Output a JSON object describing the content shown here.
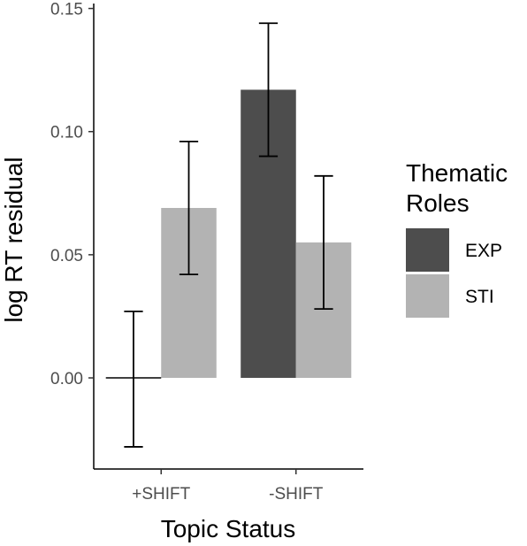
{
  "chart_data": {
    "type": "bar",
    "xlabel": "Topic Status",
    "ylabel": "log RT residual",
    "categories": [
      "+SHIFT",
      "-SHIFT"
    ],
    "ylim": [
      -0.037,
      0.152
    ],
    "yticks": [
      0.0,
      0.05,
      0.1,
      0.15
    ],
    "ytick_labels": [
      "0.00",
      "0.05",
      "0.10",
      "0.15"
    ],
    "grid": false,
    "legend": {
      "title_lines": [
        "Thematic",
        "Roles"
      ],
      "placement": "right"
    },
    "series": [
      {
        "name": "EXP",
        "color": "#4d4d4d",
        "values": [
          0.0,
          0.117
        ],
        "error_low": [
          -0.028,
          0.09
        ],
        "error_high": [
          0.027,
          0.144
        ]
      },
      {
        "name": "STI",
        "color": "#b3b3b3",
        "values": [
          0.069,
          0.055
        ],
        "error_low": [
          0.042,
          0.028
        ],
        "error_high": [
          0.096,
          0.082
        ]
      }
    ]
  }
}
